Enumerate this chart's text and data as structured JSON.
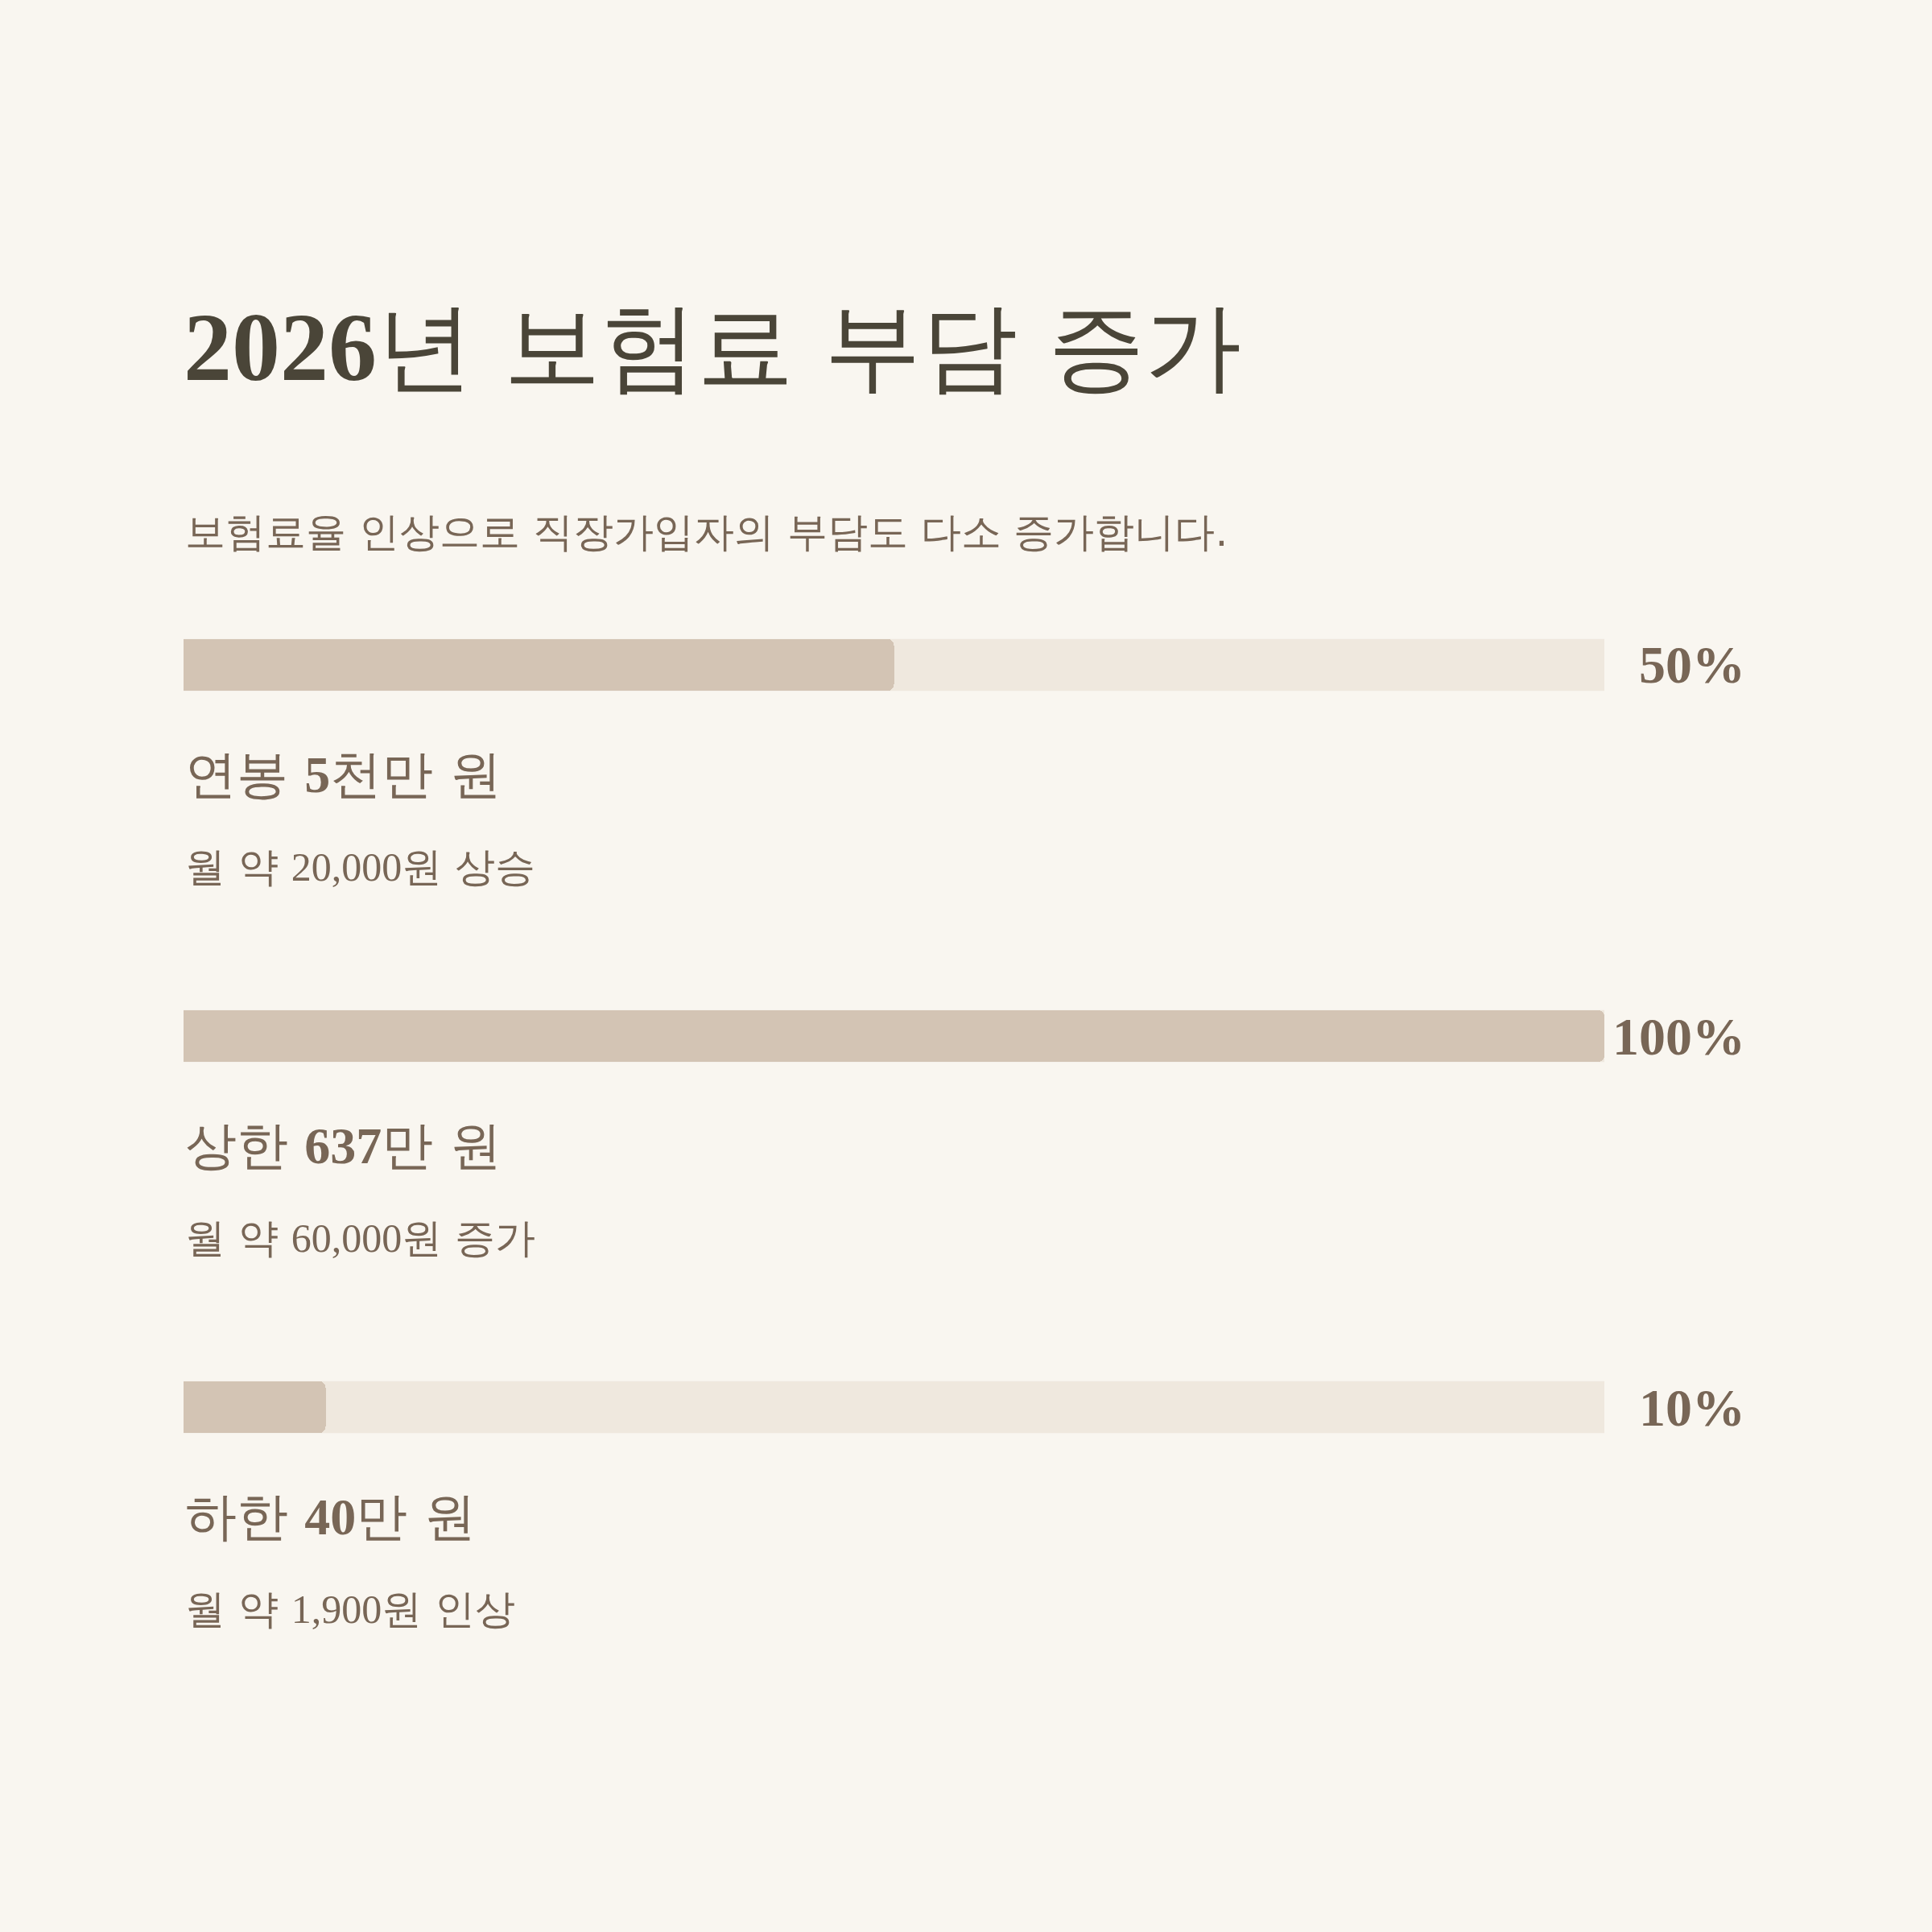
{
  "chart_data": {
    "type": "bar",
    "orientation": "horizontal",
    "title": "2026년 보험료 부담 증가",
    "subtitle": "보험료율 인상으로 직장가입자의 부담도 다소 증가합니다.",
    "categories": [
      "연봉 5천만 원",
      "상한 637만 원",
      "하한 40만 원"
    ],
    "values": [
      50,
      100,
      10
    ],
    "value_labels": [
      "50%",
      "100%",
      "10%"
    ],
    "color": "#d3c4b4",
    "xlim": [
      0,
      100
    ],
    "tick_labels": "y",
    "annotations": [
      "월 약 20,000원 상승",
      "월 약 60,000원 증가",
      "월 약 1,900원 인상"
    ]
  }
}
